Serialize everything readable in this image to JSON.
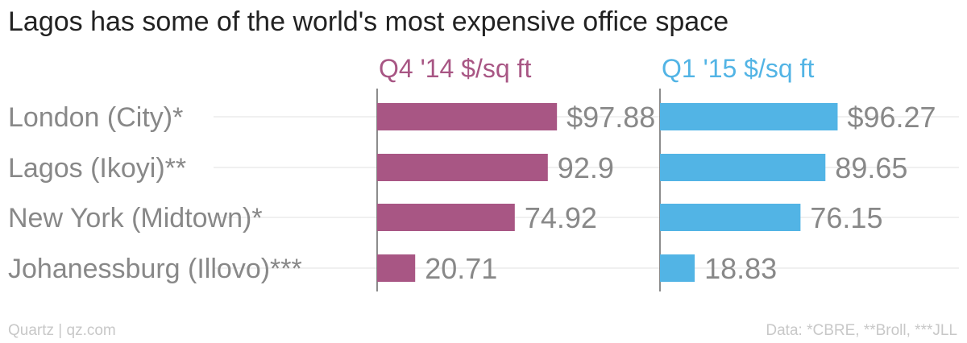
{
  "chart_data": {
    "type": "bar",
    "orientation": "horizontal",
    "title": "Lagos has some of the world's most expensive office space",
    "categories": [
      "London (City)*",
      "Lagos (Ikoyi)**",
      "New York (Midtown)*",
      "Johanessburg (Illovo)***"
    ],
    "series": [
      {
        "name": "Q4 '14 $/sq ft",
        "color": "#a85684",
        "values": [
          97.88,
          92.9,
          74.92,
          20.71
        ],
        "labels": [
          "$97.88",
          "92.9",
          "74.92",
          "20.71"
        ]
      },
      {
        "name": "Q1 '15 $/sq ft",
        "color": "#52b4e5",
        "values": [
          96.27,
          89.65,
          76.15,
          18.83
        ],
        "labels": [
          "$96.27",
          "89.65",
          "76.15",
          "18.83"
        ]
      }
    ],
    "xlim": [
      0,
      100
    ],
    "grid": true,
    "legend": "none"
  },
  "footer": {
    "source_left": "Quartz | qz.com",
    "source_right": "Data: *CBRE, **Broll, ***JLL"
  }
}
